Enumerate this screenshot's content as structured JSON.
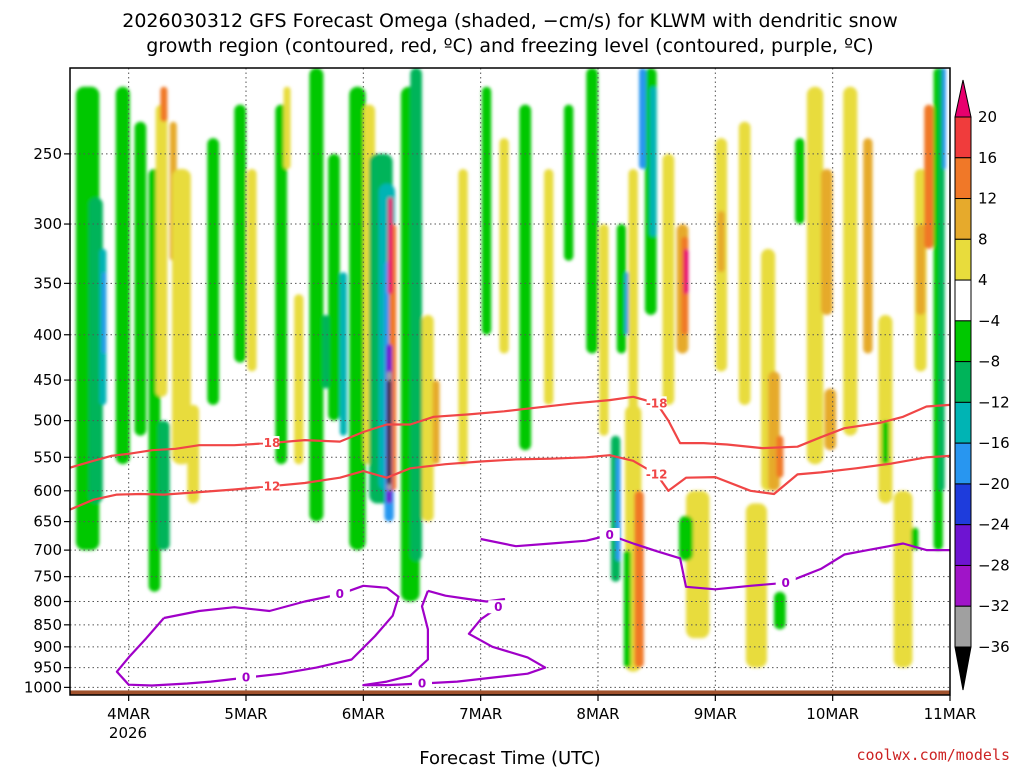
{
  "title_line1": "2026030312 GFS Forecast Omega (shaded, −cm/s) for KLWM with dendritic snow",
  "title_line2": "growth region (contoured, red, ºC) and freezing level (contoured, purple, ºC)",
  "credit": "coolwx.com/models",
  "chart_data": {
    "type": "heatmap",
    "xlabel": "Forecast Time (UTC)",
    "ylabel": "",
    "x_ticks": [
      "4MAR",
      "5MAR",
      "6MAR",
      "7MAR",
      "8MAR",
      "9MAR",
      "10MAR",
      "11MAR"
    ],
    "x_year_label": "2026",
    "x_range_days": [
      3.5,
      11.0
    ],
    "y_ticks": [
      "250",
      "300",
      "350",
      "400",
      "450",
      "500",
      "550",
      "600",
      "650",
      "700",
      "750",
      "800",
      "850",
      "900",
      "950",
      "1000"
    ],
    "y_range_hpa": [
      1020,
      200
    ],
    "colorbar": {
      "labels": [
        "20",
        "16",
        "12",
        "8",
        "4",
        "−4",
        "−8",
        "−12",
        "−16",
        "−20",
        "−24",
        "−28",
        "−32",
        "−36"
      ],
      "bins": [
        {
          "range": ">20",
          "color": "#e8006e"
        },
        {
          "range": "16 to 20",
          "color": "#f03c3c"
        },
        {
          "range": "12 to 16",
          "color": "#f07828"
        },
        {
          "range": "8 to 12",
          "color": "#e6aa2c"
        },
        {
          "range": "4 to 8",
          "color": "#e8dc3c"
        },
        {
          "range": "-4 to 4",
          "color": "#ffffff"
        },
        {
          "range": "-8 to -4",
          "color": "#00c800"
        },
        {
          "range": "-12 to -8",
          "color": "#00b45a"
        },
        {
          "range": "-16 to -12",
          "color": "#00b4b4"
        },
        {
          "range": "-20 to -16",
          "color": "#2896f0"
        },
        {
          "range": "-24 to -20",
          "color": "#1e3cdc"
        },
        {
          "range": "-28 to -24",
          "color": "#6e14d2"
        },
        {
          "range": "-32 to -28",
          "color": "#a014c8"
        },
        {
          "range": "-36 to -32",
          "color": "#a0a0a0"
        },
        {
          "range": "<-36",
          "color": "#000000"
        }
      ]
    },
    "dgz_contours": [
      {
        "label": "-18",
        "color": "#f04646",
        "points": [
          [
            3.5,
            565
          ],
          [
            3.7,
            555
          ],
          [
            3.85,
            548
          ],
          [
            4.0,
            545
          ],
          [
            4.2,
            540
          ],
          [
            4.4,
            538
          ],
          [
            4.6,
            533
          ],
          [
            4.9,
            533
          ],
          [
            5.2,
            530
          ],
          [
            5.5,
            526
          ],
          [
            5.8,
            528
          ],
          [
            6.0,
            515
          ],
          [
            6.2,
            505
          ],
          [
            6.4,
            505
          ],
          [
            6.6,
            495
          ],
          [
            6.9,
            492
          ],
          [
            7.2,
            488
          ],
          [
            7.5,
            483
          ],
          [
            7.8,
            478
          ],
          [
            8.1,
            474
          ],
          [
            8.3,
            470
          ],
          [
            8.5,
            478
          ],
          [
            8.6,
            500
          ],
          [
            8.7,
            530
          ],
          [
            8.9,
            530
          ],
          [
            9.1,
            532
          ],
          [
            9.4,
            537
          ],
          [
            9.7,
            535
          ],
          [
            9.9,
            522
          ],
          [
            10.1,
            510
          ],
          [
            10.4,
            503
          ],
          [
            10.6,
            495
          ],
          [
            10.8,
            482
          ],
          [
            11.0,
            480
          ]
        ]
      },
      {
        "label": "-12",
        "color": "#f04646",
        "points": [
          [
            3.5,
            630
          ],
          [
            3.7,
            614
          ],
          [
            3.9,
            606
          ],
          [
            4.1,
            605
          ],
          [
            4.3,
            606
          ],
          [
            4.6,
            602
          ],
          [
            4.9,
            598
          ],
          [
            5.2,
            593
          ],
          [
            5.5,
            588
          ],
          [
            5.8,
            580
          ],
          [
            6.0,
            570
          ],
          [
            6.2,
            580
          ],
          [
            6.4,
            566
          ],
          [
            6.7,
            560
          ],
          [
            7.0,
            556
          ],
          [
            7.3,
            553
          ],
          [
            7.6,
            552
          ],
          [
            7.9,
            550
          ],
          [
            8.1,
            547
          ],
          [
            8.3,
            555
          ],
          [
            8.5,
            575
          ],
          [
            8.6,
            600
          ],
          [
            8.75,
            580
          ],
          [
            9.0,
            579
          ],
          [
            9.3,
            600
          ],
          [
            9.5,
            605
          ],
          [
            9.7,
            575
          ],
          [
            9.9,
            572
          ],
          [
            10.2,
            566
          ],
          [
            10.5,
            559
          ],
          [
            10.8,
            550
          ],
          [
            11.0,
            548
          ]
        ]
      }
    ],
    "freezing_contours": [
      {
        "label": "0",
        "color": "#a000c8",
        "points": [
          [
            4.3,
            835
          ],
          [
            4.6,
            820
          ],
          [
            4.9,
            812
          ],
          [
            5.2,
            820
          ],
          [
            5.5,
            800
          ],
          [
            5.8,
            785
          ],
          [
            6.0,
            768
          ],
          [
            6.2,
            772
          ],
          [
            6.3,
            790
          ],
          [
            6.25,
            830
          ],
          [
            6.1,
            875
          ],
          [
            5.9,
            930
          ],
          [
            5.6,
            950
          ],
          [
            5.3,
            965
          ],
          [
            5.0,
            975
          ],
          [
            4.7,
            985
          ],
          [
            4.5,
            990
          ],
          [
            4.2,
            995
          ],
          [
            4.0,
            993
          ],
          [
            3.9,
            960
          ],
          [
            4.0,
            925
          ],
          [
            4.15,
            880
          ],
          [
            4.3,
            835
          ]
        ]
      },
      {
        "label": "0",
        "color": "#a000c8",
        "points": [
          [
            6.55,
            778
          ],
          [
            6.7,
            788
          ],
          [
            6.9,
            795
          ],
          [
            7.05,
            800
          ],
          [
            7.2,
            795
          ],
          [
            7.15,
            812
          ],
          [
            7.0,
            838
          ],
          [
            6.9,
            870
          ],
          [
            7.1,
            900
          ],
          [
            7.4,
            925
          ],
          [
            7.55,
            950
          ],
          [
            7.4,
            965
          ],
          [
            7.1,
            975
          ],
          [
            6.8,
            985
          ],
          [
            6.5,
            990
          ],
          [
            6.2,
            994
          ],
          [
            6.0,
            994
          ],
          [
            6.2,
            985
          ],
          [
            6.4,
            970
          ],
          [
            6.55,
            930
          ],
          [
            6.55,
            860
          ],
          [
            6.5,
            810
          ],
          [
            6.55,
            778
          ]
        ]
      },
      {
        "label": "0",
        "color": "#a000c8",
        "points": [
          [
            7.0,
            680
          ],
          [
            7.3,
            693
          ],
          [
            7.6,
            688
          ],
          [
            7.9,
            683
          ],
          [
            8.1,
            673
          ],
          [
            8.3,
            688
          ],
          [
            8.5,
            702
          ],
          [
            8.7,
            715
          ],
          [
            8.75,
            770
          ],
          [
            9.0,
            775
          ],
          [
            9.3,
            768
          ],
          [
            9.6,
            762
          ],
          [
            9.9,
            735
          ],
          [
            10.1,
            708
          ],
          [
            10.3,
            700
          ],
          [
            10.6,
            688
          ],
          [
            10.8,
            700
          ],
          [
            11.0,
            700
          ]
        ]
      }
    ],
    "surface_terrain_hpa": 1008
  }
}
